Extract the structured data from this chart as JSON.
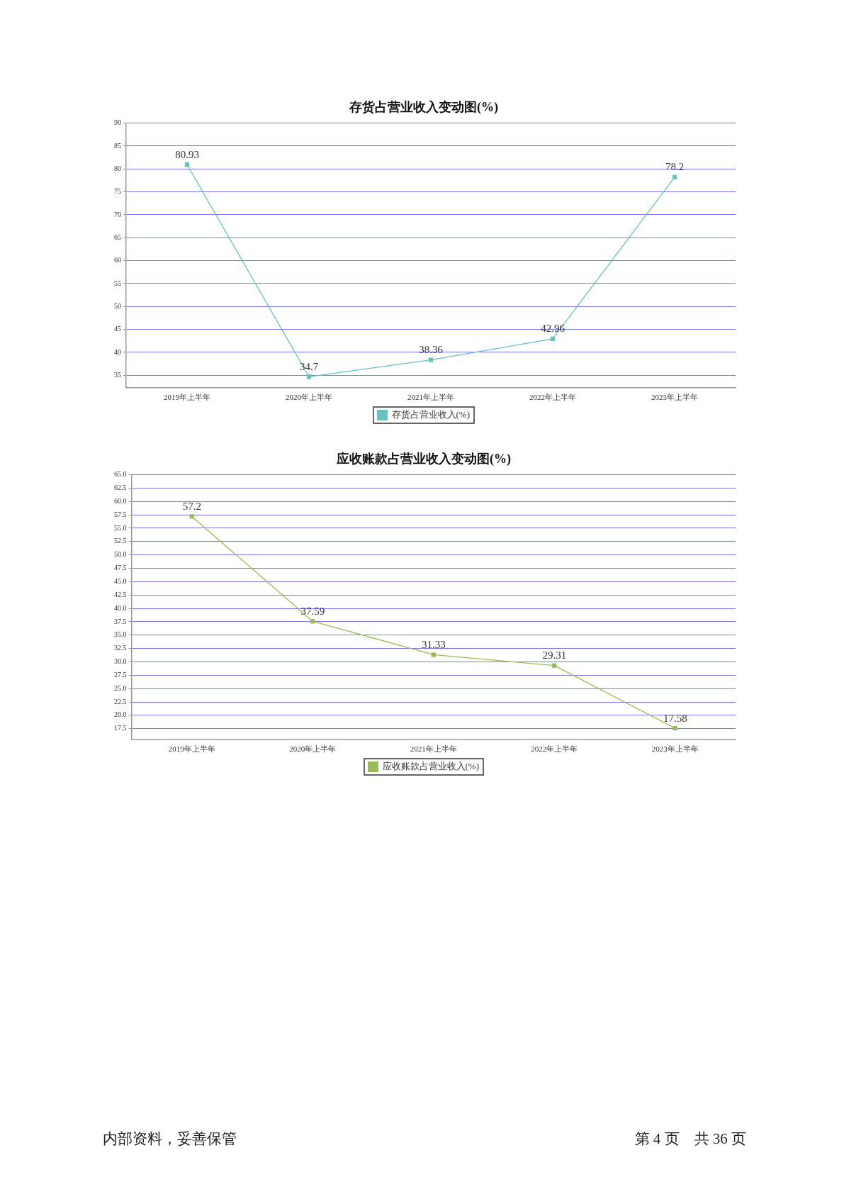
{
  "chart_data": [
    {
      "type": "line",
      "title": "存货占营业收入变动图(%)",
      "categories": [
        "2019年上半年",
        "2020年上半年",
        "2021年上半年",
        "2022年上半年",
        "2023年上半年"
      ],
      "series": [
        {
          "name": "存货占营业收入(%)",
          "color": "#6cc0c0",
          "values": [
            80.93,
            34.7,
            38.36,
            42.96,
            78.2
          ]
        }
      ],
      "ylim": [
        32.3,
        90
      ],
      "yticks": [
        35,
        40,
        45,
        50,
        55,
        60,
        65,
        70,
        75,
        80,
        85,
        90
      ],
      "grid": "y",
      "legend": "bottom",
      "marker": "square",
      "line_style": "solid",
      "data_labels": true
    },
    {
      "type": "line",
      "title": "应收账款占营业收入变动图(%)",
      "categories": [
        "2019年上半年",
        "2020年上半年",
        "2021年上半年",
        "2022年上半年",
        "2023年上半年"
      ],
      "series": [
        {
          "name": "应收账款占营业收入(%)",
          "color": "#9bbb59",
          "values": [
            57.2,
            37.59,
            31.33,
            29.31,
            17.58
          ]
        }
      ],
      "ylim": [
        15.5,
        65
      ],
      "yticks": [
        {
          "value": 17.5,
          "label": "17.5"
        },
        {
          "value": 20,
          "label": "20.0"
        },
        {
          "value": 22.5,
          "label": "22.5"
        },
        {
          "value": 25,
          "label": "25.0"
        },
        {
          "value": 27.5,
          "label": "27.5"
        },
        {
          "value": 30,
          "label": "30.0"
        },
        {
          "value": 32.5,
          "label": "32.5"
        },
        {
          "value": 35,
          "label": "35.0"
        },
        {
          "value": 37.5,
          "label": "37.5"
        },
        {
          "value": 40,
          "label": "40.0"
        },
        {
          "value": 42.5,
          "label": "42.5"
        },
        {
          "value": 45,
          "label": "45.0"
        },
        {
          "value": 47.5,
          "label": "47.5"
        },
        {
          "value": 50,
          "label": "50.0"
        },
        {
          "value": 52.5,
          "label": "52.5"
        },
        {
          "value": 55,
          "label": "55.0"
        },
        {
          "value": 57.5,
          "label": "57.5"
        },
        {
          "value": 60,
          "label": "60.0"
        },
        {
          "value": 62.5,
          "label": "62.5"
        },
        {
          "value": 65,
          "label": "65.0"
        }
      ],
      "grid": "y",
      "legend": "bottom",
      "marker": "square",
      "line_style": "solid",
      "data_labels": true,
      "annotations": [
        "内部资料，妥善保管",
        "第 4 页　共 36 页"
      ]
    }
  ]
}
